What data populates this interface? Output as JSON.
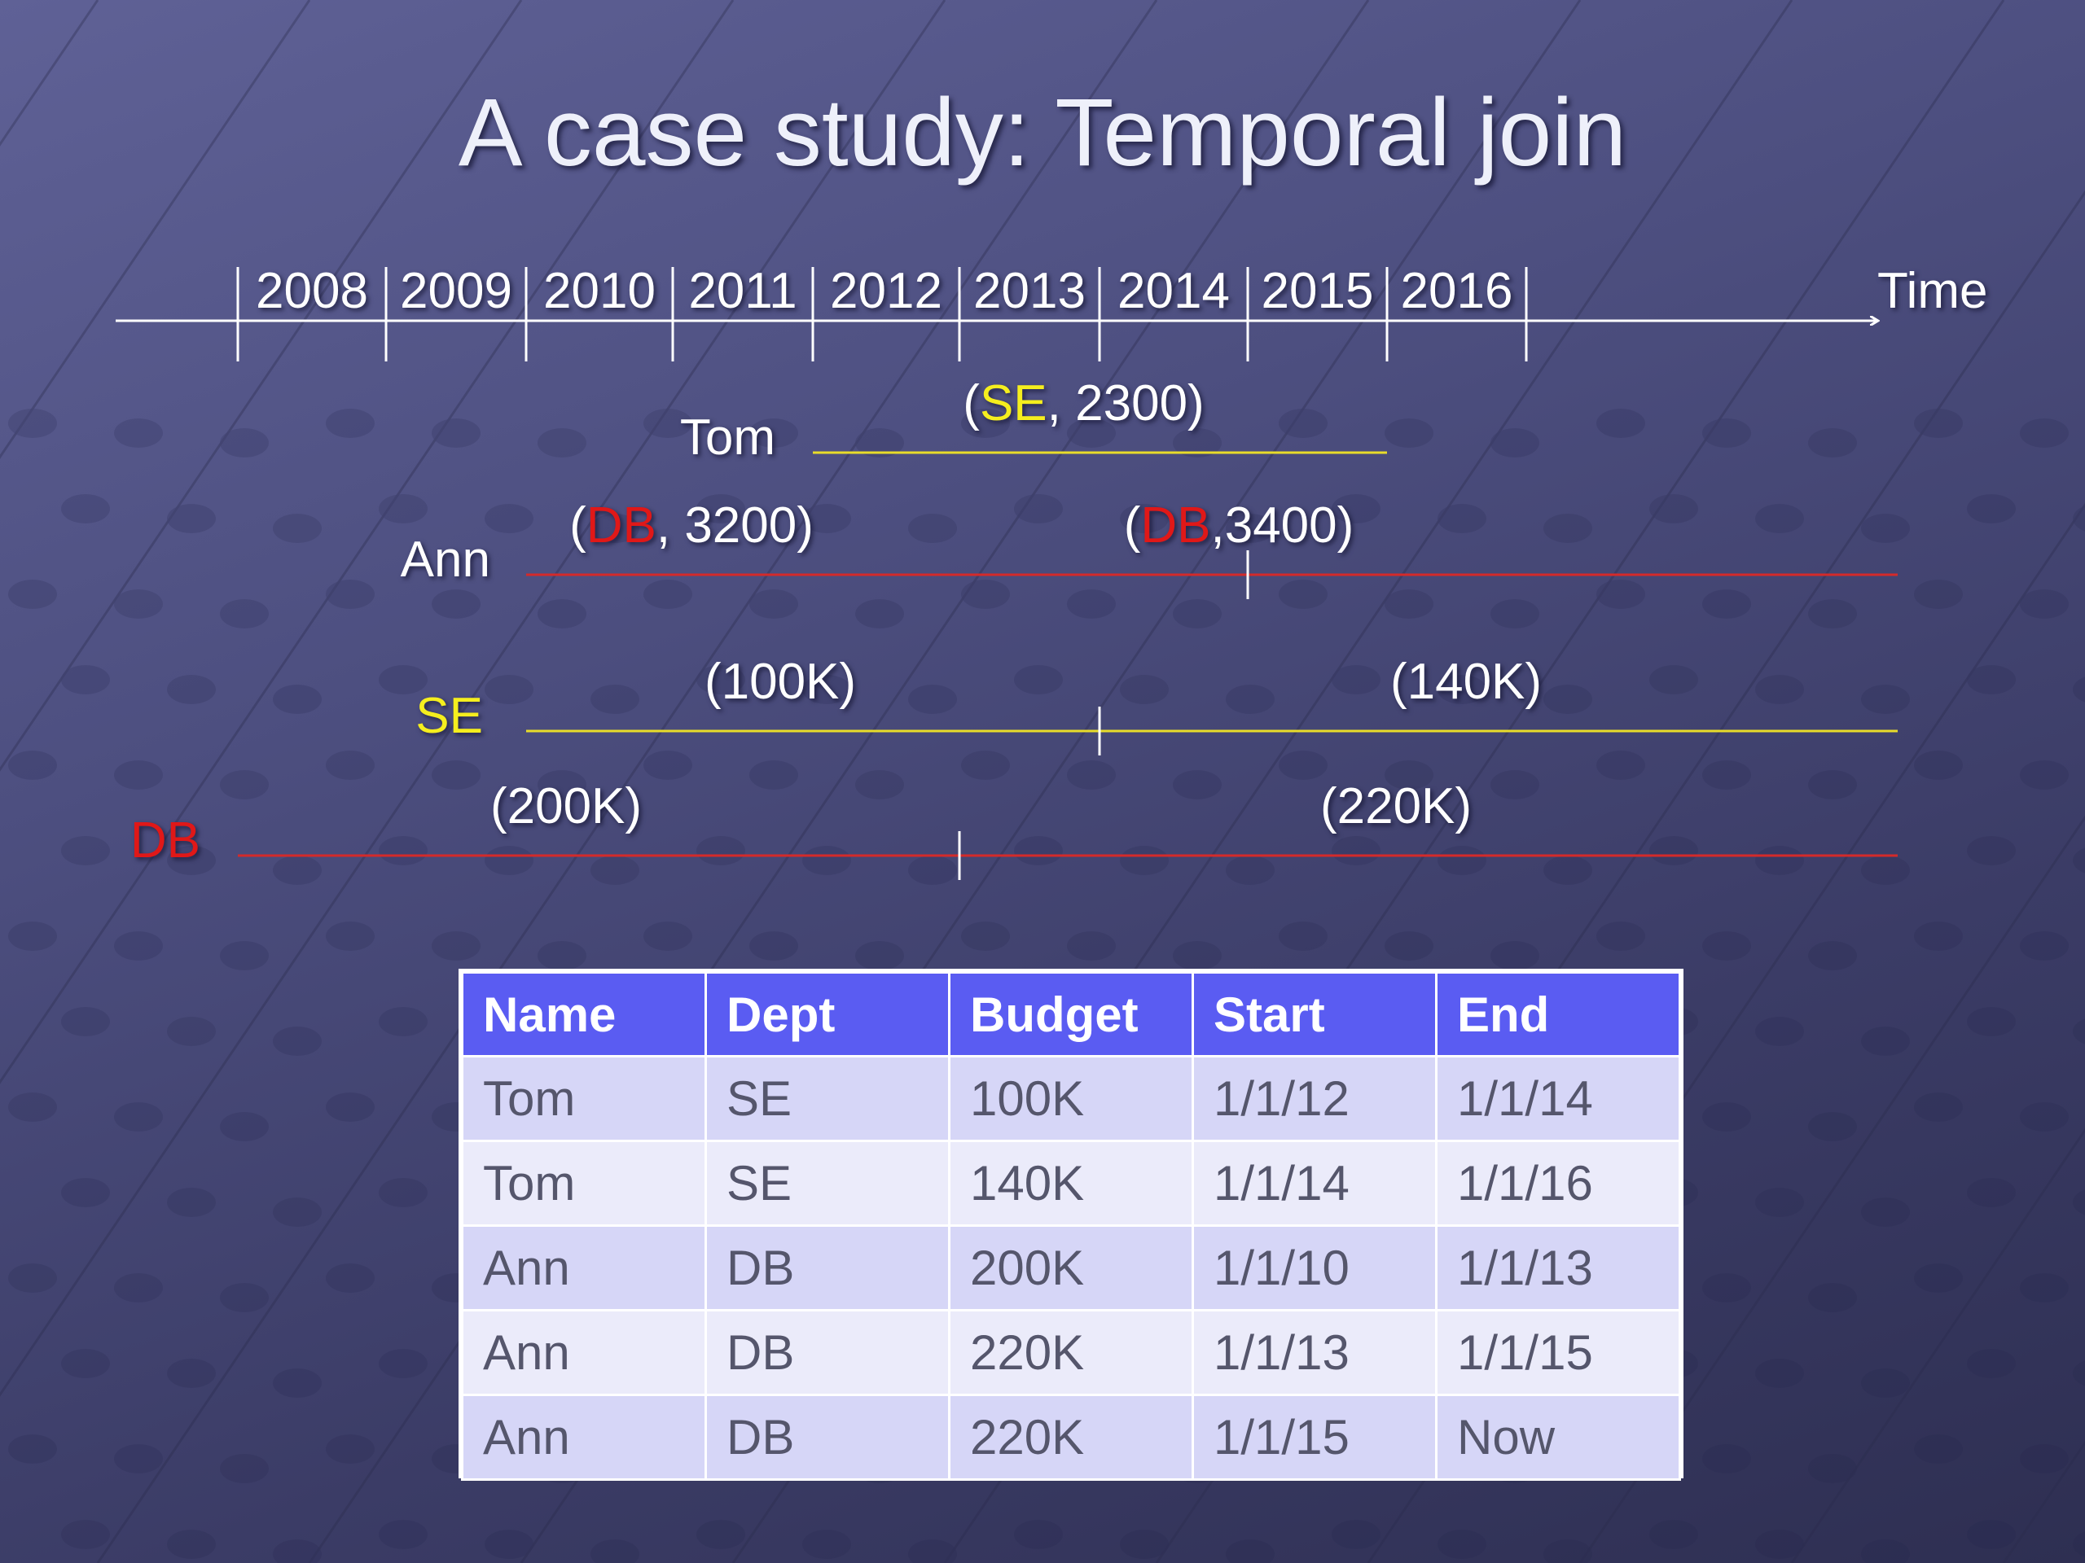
{
  "title": "A case study: Temporal join",
  "axis": {
    "years": [
      "2008",
      "2009",
      "2010",
      "2011",
      "2012",
      "2013",
      "2014",
      "2015",
      "2016"
    ],
    "label": "Time"
  },
  "rows": [
    {
      "label": "Tom",
      "label_color": "#ffffff",
      "line_color": "#e8dc2a",
      "segments": [
        {
          "from": 2012,
          "to": 2016,
          "parts": [
            {
              "text": "(",
              "color": "#ffffff"
            },
            {
              "text": "SE",
              "color": "#f5ee1e"
            },
            {
              "text": ", 2300)",
              "color": "#ffffff"
            }
          ]
        }
      ]
    },
    {
      "label": "Ann",
      "label_color": "#ffffff",
      "line_color": "#d42a2a",
      "segments": [
        {
          "from": 2010,
          "to": 2015,
          "parts": [
            {
              "text": "(",
              "color": "#ffffff"
            },
            {
              "text": "DB",
              "color": "#e01818"
            },
            {
              "text": ", 3200)",
              "color": "#ffffff"
            }
          ]
        },
        {
          "from": 2015,
          "to": "Now",
          "parts": [
            {
              "text": "(",
              "color": "#ffffff"
            },
            {
              "text": "DB",
              "color": "#e01818"
            },
            {
              "text": ",3400)",
              "color": "#ffffff"
            }
          ]
        }
      ]
    },
    {
      "label": "SE",
      "label_color": "#f5ee1e",
      "line_color": "#e8dc2a",
      "segments": [
        {
          "from": 2010,
          "to": 2014,
          "parts": [
            {
              "text": "(100K)",
              "color": "#ffffff"
            }
          ]
        },
        {
          "from": 2014,
          "to": "Now",
          "parts": [
            {
              "text": "(140K)",
              "color": "#ffffff"
            }
          ]
        }
      ]
    },
    {
      "label": "DB",
      "label_color": "#e01818",
      "line_color": "#d42a2a",
      "segments": [
        {
          "from": 2008,
          "to": 2013,
          "parts": [
            {
              "text": "(200K)",
              "color": "#ffffff"
            }
          ]
        },
        {
          "from": 2013,
          "to": "Now",
          "parts": [
            {
              "text": "(220K)",
              "color": "#ffffff"
            }
          ]
        }
      ]
    }
  ],
  "table": {
    "headers": [
      "Name",
      "Dept",
      "Budget",
      "Start",
      "End"
    ],
    "rows": [
      [
        "Tom",
        "SE",
        "100K",
        "1/1/12",
        "1/1/14"
      ],
      [
        "Tom",
        "SE",
        "140K",
        "1/1/14",
        "1/1/16"
      ],
      [
        "Ann",
        "DB",
        "200K",
        "1/1/10",
        "1/1/13"
      ],
      [
        "Ann",
        "DB",
        "220K",
        "1/1/13",
        "1/1/15"
      ],
      [
        "Ann",
        "DB",
        "220K",
        "1/1/15",
        "Now"
      ]
    ]
  }
}
